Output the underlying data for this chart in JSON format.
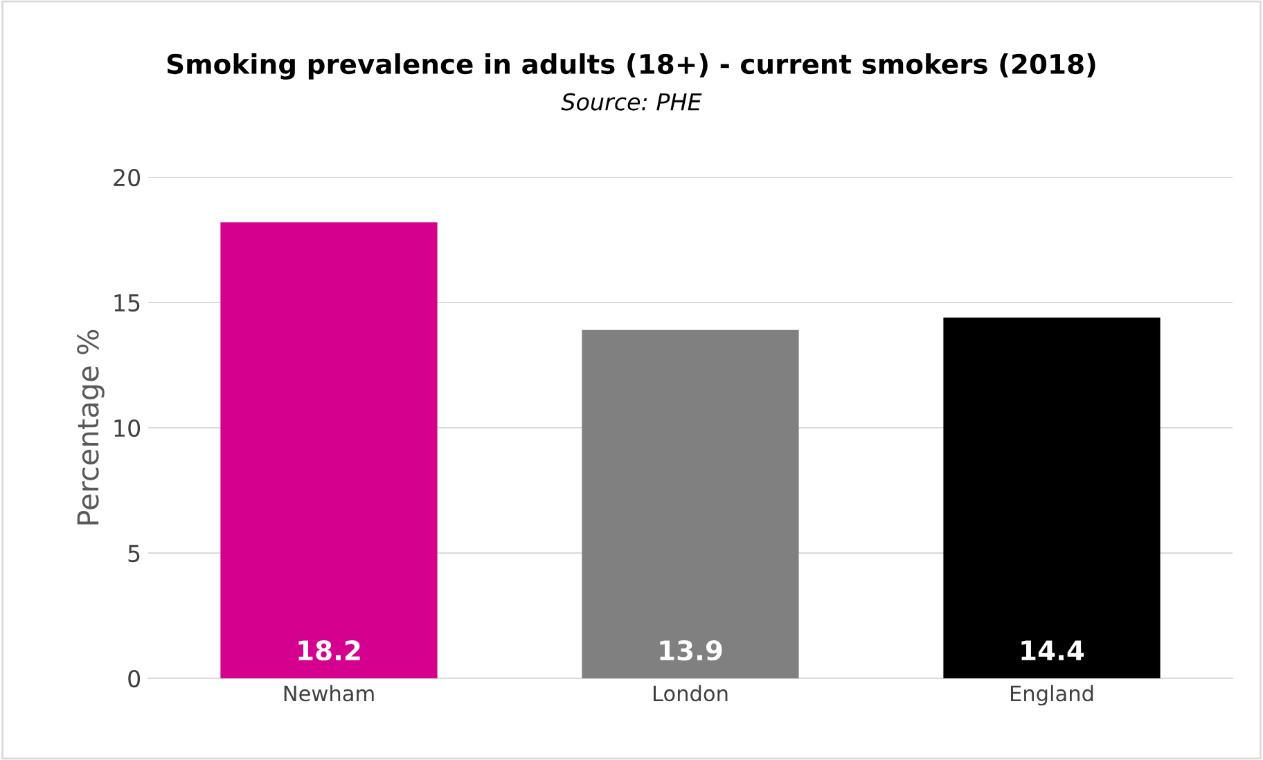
{
  "chart_data": {
    "type": "bar",
    "title": "Smoking prevalence in adults (18+) - current smokers (2018)",
    "subtitle": "Source: PHE",
    "ylabel": "Percentage %",
    "categories": [
      "Newham",
      "London",
      "England"
    ],
    "values": [
      18.2,
      13.9,
      14.4
    ],
    "colors": [
      "#d6008f",
      "#808080",
      "#000000"
    ],
    "ylim": [
      0,
      20
    ],
    "yticks": [
      0,
      5,
      10,
      15,
      20
    ],
    "grid": "y",
    "data_labels": true
  }
}
